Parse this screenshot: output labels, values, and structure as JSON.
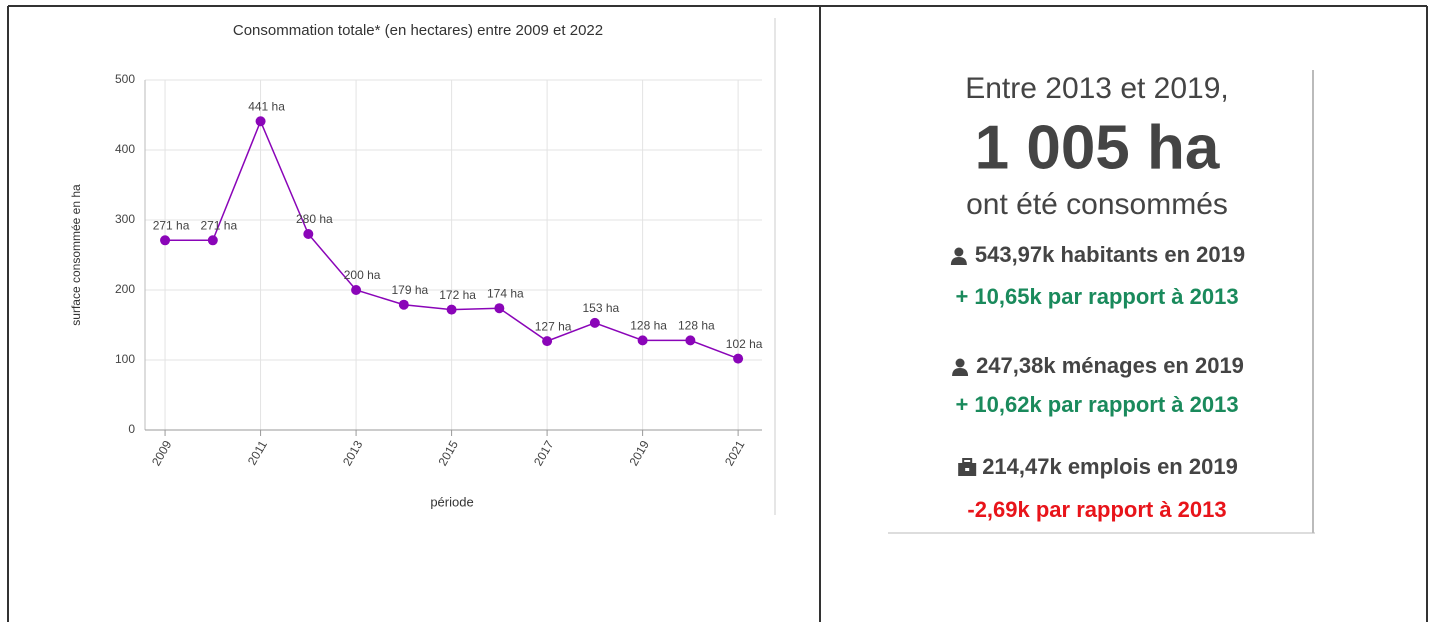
{
  "chart_data": {
    "type": "line",
    "title": "Consommation totale* (en hectares) entre 2009 et 2022",
    "x_label": "période",
    "y_label": "surface consommée en ha",
    "x": [
      2009,
      2010,
      2011,
      2012,
      2013,
      2014,
      2015,
      2016,
      2017,
      2018,
      2019,
      2020,
      2021
    ],
    "values": [
      271,
      271,
      441,
      280,
      200,
      179,
      172,
      174,
      127,
      153,
      128,
      128,
      102
    ],
    "value_labels": [
      "271 ha",
      "271 ha",
      "441 ha",
      "280 ha",
      "200 ha",
      "179 ha",
      "172 ha",
      "174 ha",
      "127 ha",
      "153 ha",
      "128 ha",
      "128 ha",
      "102 ha"
    ],
    "color": "#8a05b8",
    "xlim": [
      2008.58,
      2021.5
    ],
    "xticks": [
      2009,
      2011,
      2013,
      2015,
      2017,
      2019,
      2021
    ],
    "ylim": [
      0,
      500
    ],
    "yticks": [
      0,
      100,
      200,
      300,
      400,
      500
    ],
    "grid": true
  },
  "stats": {
    "intro": "Entre 2013 et 2019,",
    "total": "1 005 ha",
    "caption": "ont été consommés",
    "items": [
      {
        "label": "543,97k habitants en 2019",
        "change": "+ 10,65k par rapport à 2013",
        "color": "#1a8a5c"
      },
      {
        "label": "247,38k ménages en 2019",
        "change": "+ 10,62k par rapport à 2013",
        "color": "#1a8a5c"
      },
      {
        "label": "214,47k emplois en 2019",
        "change": "-2,69k par rapport à 2013",
        "color": "#e8141a"
      }
    ]
  }
}
